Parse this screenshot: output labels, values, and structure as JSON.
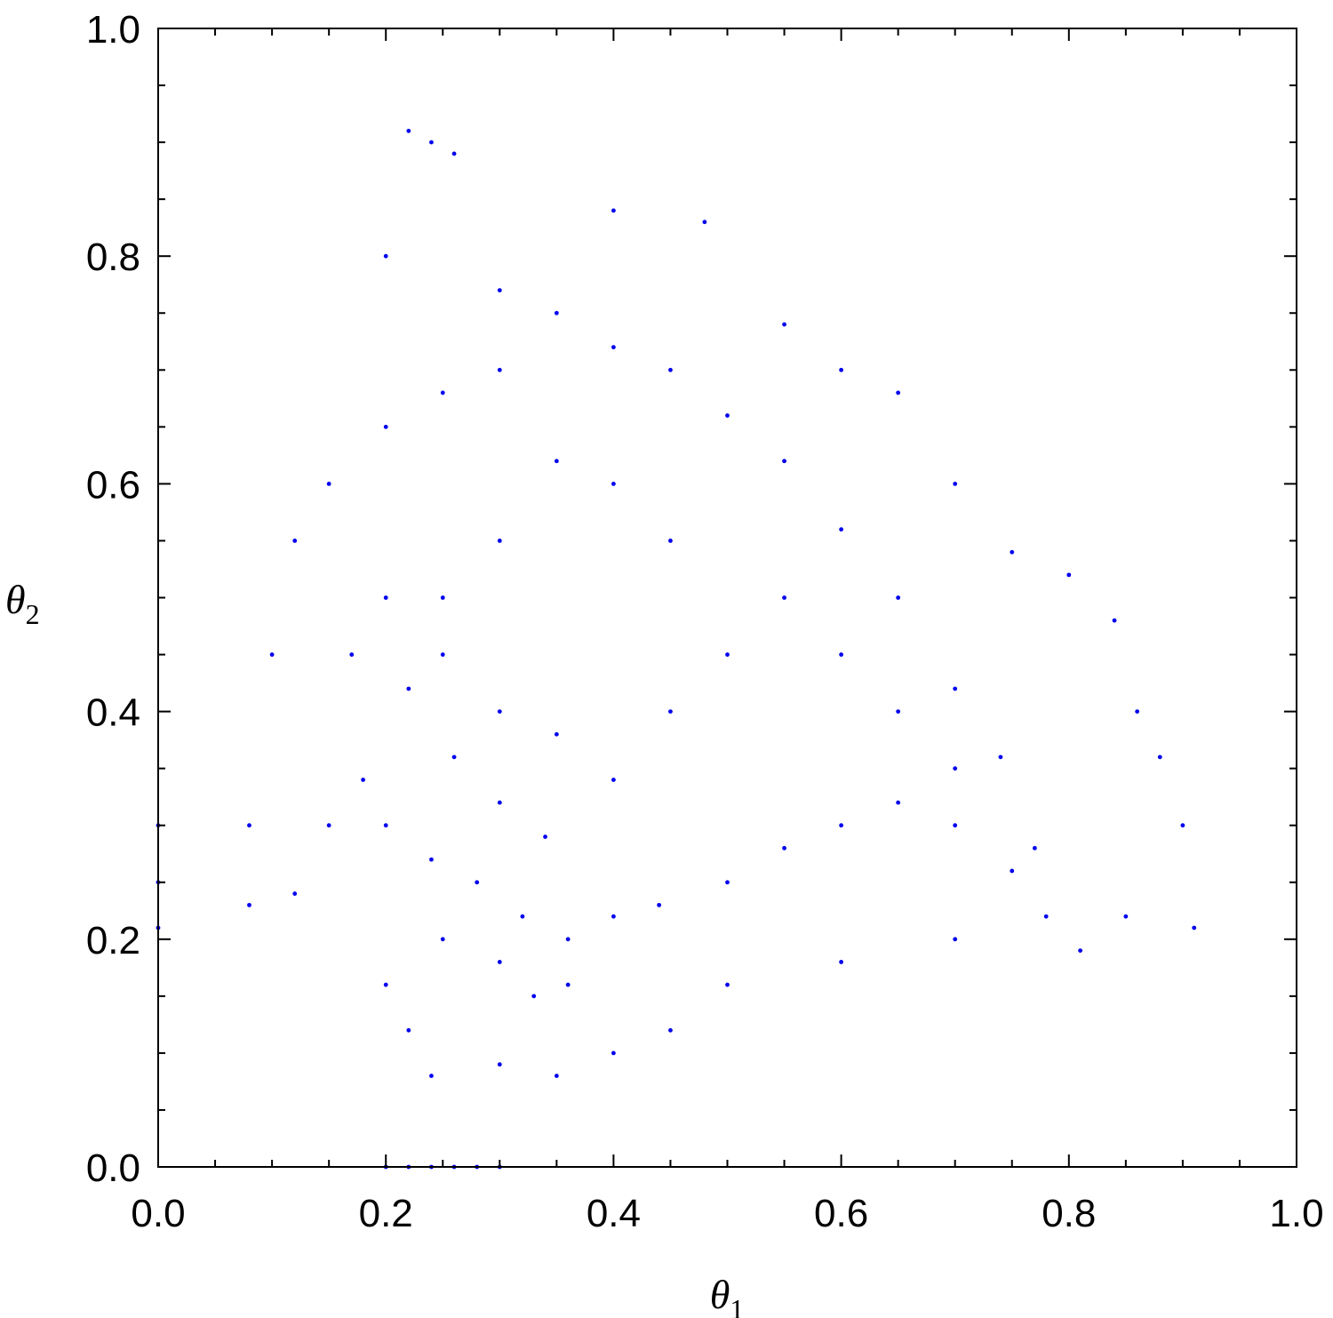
{
  "chart_data": {
    "type": "scatter",
    "title": "",
    "xlabel": "θ",
    "xlabel_subscript": "1",
    "ylabel": "θ",
    "ylabel_subscript": "2",
    "xlim": [
      0.0,
      1.0
    ],
    "ylim": [
      0.0,
      1.0
    ],
    "xticks": [
      0.0,
      0.2,
      0.4,
      0.6,
      0.8,
      1.0
    ],
    "yticks": [
      0.0,
      0.2,
      0.4,
      0.6,
      0.8,
      1.0
    ],
    "xtick_labels": [
      "0.0",
      "0.2",
      "0.4",
      "0.6",
      "0.8",
      "1.0"
    ],
    "ytick_labels": [
      "0.0",
      "0.2",
      "0.4",
      "0.6",
      "0.8",
      "1.0"
    ],
    "minor_tick_step": 0.05,
    "grid": false,
    "legend": "none",
    "marker_color": "#0000ee",
    "series": [
      {
        "points": [
          [
            0.22,
            0.91
          ],
          [
            0.24,
            0.9
          ],
          [
            0.26,
            0.89
          ],
          [
            0.2,
            0.8
          ],
          [
            0.3,
            0.77
          ],
          [
            0.4,
            0.84
          ],
          [
            0.48,
            0.83
          ],
          [
            0.55,
            0.74
          ],
          [
            0.6,
            0.7
          ],
          [
            0.65,
            0.68
          ],
          [
            0.7,
            0.6
          ],
          [
            0.75,
            0.54
          ],
          [
            0.8,
            0.52
          ],
          [
            0.84,
            0.48
          ],
          [
            0.86,
            0.4
          ],
          [
            0.88,
            0.36
          ],
          [
            0.9,
            0.3
          ],
          [
            0.91,
            0.21
          ],
          [
            0.85,
            0.22
          ],
          [
            0.81,
            0.19
          ],
          [
            0.77,
            0.28
          ],
          [
            0.74,
            0.36
          ],
          [
            0.7,
            0.42
          ],
          [
            0.65,
            0.5
          ],
          [
            0.6,
            0.56
          ],
          [
            0.55,
            0.62
          ],
          [
            0.5,
            0.66
          ],
          [
            0.45,
            0.7
          ],
          [
            0.4,
            0.72
          ],
          [
            0.35,
            0.75
          ],
          [
            0.3,
            0.7
          ],
          [
            0.25,
            0.68
          ],
          [
            0.2,
            0.65
          ],
          [
            0.15,
            0.6
          ],
          [
            0.12,
            0.55
          ],
          [
            0.1,
            0.45
          ],
          [
            0.08,
            0.3
          ],
          [
            0.08,
            0.23
          ],
          [
            0.12,
            0.24
          ],
          [
            0.15,
            0.3
          ],
          [
            0.18,
            0.34
          ],
          [
            0.2,
            0.3
          ],
          [
            0.24,
            0.27
          ],
          [
            0.28,
            0.25
          ],
          [
            0.32,
            0.22
          ],
          [
            0.36,
            0.2
          ],
          [
            0.4,
            0.22
          ],
          [
            0.44,
            0.23
          ],
          [
            0.5,
            0.25
          ],
          [
            0.55,
            0.28
          ],
          [
            0.6,
            0.3
          ],
          [
            0.65,
            0.32
          ],
          [
            0.7,
            0.3
          ],
          [
            0.75,
            0.26
          ],
          [
            0.78,
            0.22
          ],
          [
            0.7,
            0.2
          ],
          [
            0.6,
            0.18
          ],
          [
            0.5,
            0.16
          ],
          [
            0.45,
            0.12
          ],
          [
            0.4,
            0.1
          ],
          [
            0.35,
            0.08
          ],
          [
            0.3,
            0.09
          ],
          [
            0.24,
            0.08
          ],
          [
            0.22,
            0.12
          ],
          [
            0.2,
            0.16
          ],
          [
            0.25,
            0.2
          ],
          [
            0.3,
            0.18
          ],
          [
            0.33,
            0.15
          ],
          [
            0.36,
            0.16
          ],
          [
            0.34,
            0.29
          ],
          [
            0.3,
            0.32
          ],
          [
            0.26,
            0.36
          ],
          [
            0.22,
            0.42
          ],
          [
            0.25,
            0.45
          ],
          [
            0.3,
            0.4
          ],
          [
            0.35,
            0.38
          ],
          [
            0.4,
            0.34
          ],
          [
            0.45,
            0.4
          ],
          [
            0.5,
            0.45
          ],
          [
            0.55,
            0.5
          ],
          [
            0.6,
            0.45
          ],
          [
            0.65,
            0.4
          ],
          [
            0.7,
            0.35
          ],
          [
            0.45,
            0.55
          ],
          [
            0.4,
            0.6
          ],
          [
            0.35,
            0.62
          ],
          [
            0.3,
            0.55
          ],
          [
            0.25,
            0.5
          ],
          [
            0.2,
            0.5
          ],
          [
            0.17,
            0.45
          ],
          [
            0.0,
            0.21
          ],
          [
            0.0,
            0.25
          ],
          [
            0.0,
            0.3
          ],
          [
            0.2,
            0.0
          ],
          [
            0.22,
            0.0
          ],
          [
            0.24,
            0.0
          ],
          [
            0.26,
            0.0
          ],
          [
            0.28,
            0.0
          ],
          [
            0.3,
            0.0
          ]
        ]
      }
    ]
  }
}
